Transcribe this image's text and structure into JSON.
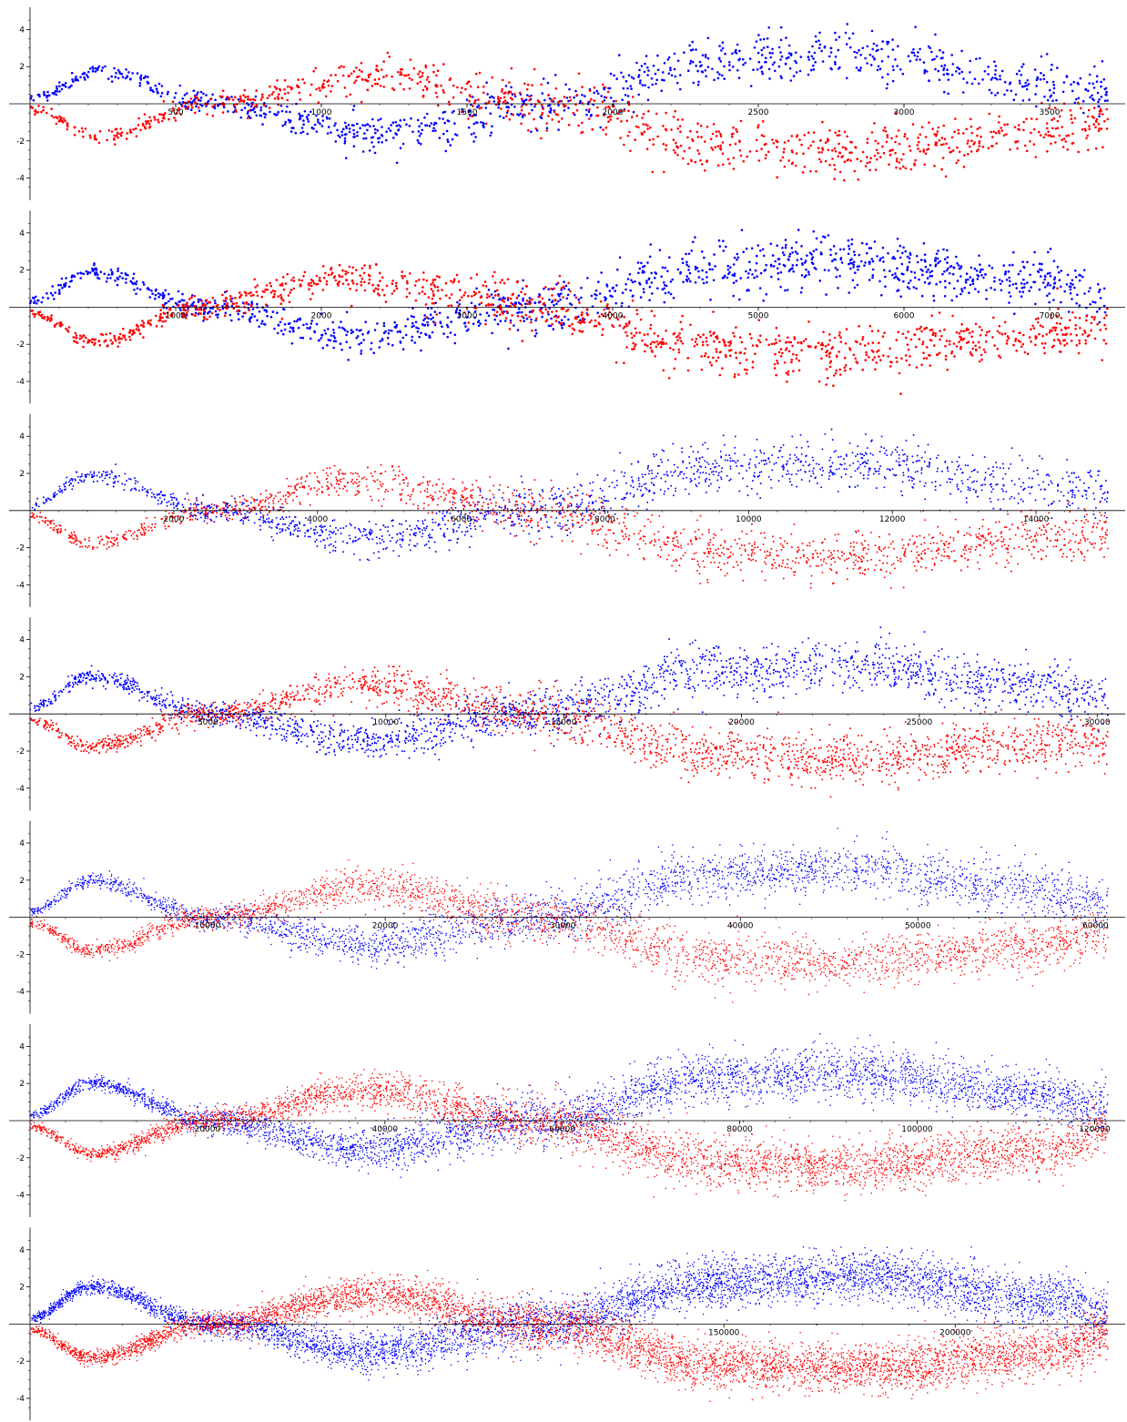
{
  "figure": {
    "panel_count": 7
  },
  "colors": {
    "series_a": "#0000ff",
    "series_b": "#ff0000",
    "axis": "#000000"
  },
  "chart_data": [
    {
      "type": "scatter",
      "title": "",
      "xlabel": "",
      "ylabel": "",
      "xlim": [
        0,
        3700
      ],
      "ylim": [
        -5,
        5
      ],
      "xticks": [
        500,
        1000,
        1500,
        2000,
        2500,
        3000,
        3500
      ],
      "xtick_labels": [
        "500",
        "1000",
        "1500",
        "2000",
        "2500",
        "3000",
        "3500"
      ],
      "yticks": [
        -4,
        -2,
        2,
        4
      ],
      "ytick_labels": [
        "-4",
        "-2",
        "2",
        "4"
      ],
      "grid": false,
      "series": [
        {
          "color": "#0000ff",
          "point_count": 1000,
          "anchors_x": [
            0,
            250,
            600,
            1200,
            1800,
            2350,
            2800,
            3500,
            3700
          ],
          "anchors_y": [
            0.3,
            1.8,
            0,
            -1.5,
            0,
            2.2,
            2.6,
            1.2,
            0.8
          ]
        },
        {
          "color": "#ff0000",
          "point_count": 1000,
          "anchors_x": [
            0,
            250,
            600,
            1200,
            1800,
            2350,
            2800,
            3500,
            3700
          ],
          "anchors_y": [
            -0.3,
            -1.8,
            0,
            1.5,
            0,
            -2.2,
            -2.6,
            -1.5,
            -0.8
          ]
        }
      ]
    },
    {
      "type": "scatter",
      "title": "",
      "xlabel": "",
      "ylabel": "",
      "xlim": [
        0,
        7400
      ],
      "ylim": [
        -5,
        5
      ],
      "xticks": [
        1000,
        2000,
        3000,
        4000,
        5000,
        6000,
        7000
      ],
      "xtick_labels": [
        "1000",
        "2000",
        "3000",
        "4000",
        "5000",
        "6000",
        "7000"
      ],
      "yticks": [
        -4,
        -2,
        2,
        4
      ],
      "ytick_labels": [
        "-4",
        "-2",
        "2",
        "4"
      ],
      "grid": false,
      "series": [
        {
          "color": "#0000ff",
          "point_count": 1200,
          "anchors_x": [
            0,
            450,
            1150,
            2200,
            3500,
            4700,
            5500,
            7000,
            7400
          ],
          "anchors_y": [
            0.3,
            1.9,
            0,
            -1.5,
            0,
            2.2,
            2.5,
            1.3,
            0.6
          ]
        },
        {
          "color": "#ff0000",
          "point_count": 1200,
          "anchors_x": [
            0,
            450,
            1150,
            2200,
            3500,
            4700,
            5500,
            7000,
            7400
          ],
          "anchors_y": [
            -0.3,
            -1.9,
            0,
            1.6,
            0,
            -2.2,
            -2.5,
            -1.5,
            -1.2
          ]
        }
      ]
    },
    {
      "type": "scatter",
      "title": "",
      "xlabel": "",
      "ylabel": "",
      "xlim": [
        0,
        15000
      ],
      "ylim": [
        -5,
        5
      ],
      "xticks": [
        2000,
        4000,
        6000,
        8000,
        10000,
        12000,
        14000
      ],
      "xtick_labels": [
        "2000",
        "4000",
        "6000",
        "8000",
        "10000",
        "12000",
        "14000"
      ],
      "yticks": [
        -4,
        -2,
        2,
        4
      ],
      "ytick_labels": [
        "-4",
        "-2",
        "2",
        "4"
      ],
      "grid": false,
      "series": [
        {
          "color": "#0000ff",
          "point_count": 1600,
          "anchors_x": [
            0,
            850,
            2500,
            4500,
            7000,
            9500,
            11500,
            14000,
            15000
          ],
          "anchors_y": [
            0.3,
            1.9,
            0,
            -1.5,
            0,
            2.3,
            2.6,
            1.4,
            0.8
          ]
        },
        {
          "color": "#ff0000",
          "point_count": 1600,
          "anchors_x": [
            0,
            850,
            2500,
            4500,
            7000,
            9500,
            11500,
            14000,
            15000
          ],
          "anchors_y": [
            -0.3,
            -1.8,
            0,
            1.6,
            0,
            -2.2,
            -2.5,
            -1.6,
            -1.3
          ]
        }
      ]
    },
    {
      "type": "scatter",
      "title": "",
      "xlabel": "",
      "ylabel": "",
      "xlim": [
        0,
        30300
      ],
      "ylim": [
        -5,
        5
      ],
      "xticks": [
        5000,
        10000,
        15000,
        20000,
        25000,
        30000
      ],
      "xtick_labels": [
        "5000",
        "10000",
        "15000",
        "20000",
        "25000",
        "30000"
      ],
      "yticks": [
        -4,
        -2,
        2,
        4
      ],
      "ytick_labels": [
        "-4",
        "-2",
        "2",
        "4"
      ],
      "grid": false,
      "series": [
        {
          "color": "#0000ff",
          "point_count": 2200,
          "anchors_x": [
            0,
            1700,
            5000,
            9500,
            14000,
            19500,
            23000,
            28500,
            30300
          ],
          "anchors_y": [
            0.3,
            2.0,
            0,
            -1.5,
            0,
            2.3,
            2.6,
            1.5,
            0.8
          ]
        },
        {
          "color": "#ff0000",
          "point_count": 2200,
          "anchors_x": [
            0,
            1700,
            5000,
            9500,
            14000,
            19500,
            23000,
            28500,
            30300
          ],
          "anchors_y": [
            -0.3,
            -1.8,
            0,
            1.6,
            0,
            -2.2,
            -2.5,
            -1.6,
            -1.2
          ]
        }
      ]
    },
    {
      "type": "scatter",
      "title": "",
      "xlabel": "",
      "ylabel": "",
      "xlim": [
        0,
        60700
      ],
      "ylim": [
        -5,
        5
      ],
      "xticks": [
        10000,
        20000,
        30000,
        40000,
        50000,
        60000
      ],
      "xtick_labels": [
        "10000",
        "20000",
        "30000",
        "40000",
        "50000",
        "60000"
      ],
      "yticks": [
        -4,
        -2,
        2,
        4
      ],
      "ytick_labels": [
        "-4",
        "-2",
        "2",
        "4"
      ],
      "grid": false,
      "series": [
        {
          "color": "#0000ff",
          "point_count": 3000,
          "anchors_x": [
            0,
            3500,
            10000,
            19000,
            28500,
            38500,
            46000,
            57000,
            60700
          ],
          "anchors_y": [
            0.3,
            2.0,
            0,
            -1.5,
            0,
            2.3,
            2.6,
            1.5,
            0.6
          ]
        },
        {
          "color": "#ff0000",
          "point_count": 3000,
          "anchors_x": [
            0,
            3500,
            10000,
            19000,
            28500,
            38500,
            46000,
            57000,
            60700
          ],
          "anchors_y": [
            -0.3,
            -1.8,
            0,
            1.6,
            0,
            -2.2,
            -2.4,
            -1.6,
            -0.7
          ]
        }
      ]
    },
    {
      "type": "scatter",
      "title": "",
      "xlabel": "",
      "ylabel": "",
      "xlim": [
        0,
        121500
      ],
      "ylim": [
        -5,
        5
      ],
      "xticks": [
        20000,
        40000,
        60000,
        80000,
        100000,
        120000
      ],
      "xtick_labels": [
        "20000",
        "40000",
        "60000",
        "80000",
        "100000",
        "120000"
      ],
      "yticks": [
        -4,
        -2,
        2,
        4
      ],
      "ytick_labels": [
        "-4",
        "-2",
        "2",
        "4"
      ],
      "grid": false,
      "series": [
        {
          "color": "#0000ff",
          "point_count": 4200,
          "anchors_x": [
            0,
            7000,
            20000,
            38000,
            57000,
            77000,
            92000,
            114000,
            121500
          ],
          "anchors_y": [
            0.3,
            2.0,
            0,
            -1.5,
            0,
            2.3,
            2.6,
            1.4,
            0.6
          ]
        },
        {
          "color": "#ff0000",
          "point_count": 4200,
          "anchors_x": [
            0,
            7000,
            20000,
            38000,
            57000,
            77000,
            92000,
            114000,
            121500
          ],
          "anchors_y": [
            -0.3,
            -1.8,
            0,
            1.6,
            0,
            -2.2,
            -2.4,
            -1.6,
            -0.6
          ]
        }
      ]
    },
    {
      "type": "scatter",
      "title": "",
      "xlabel": "",
      "ylabel": "",
      "xlim": [
        0,
        233000
      ],
      "ylim": [
        -5,
        5
      ],
      "xticks": [
        150000,
        200000
      ],
      "xtick_labels": [
        "150000",
        "200000"
      ],
      "yticks": [
        -4,
        -2,
        2,
        4
      ],
      "ytick_labels": [
        "-4",
        "-2",
        "2",
        "4"
      ],
      "grid": false,
      "series": [
        {
          "color": "#0000ff",
          "point_count": 5500,
          "anchors_x": [
            0,
            13000,
            39000,
            74000,
            110000,
            150000,
            180000,
            222000,
            233000
          ],
          "anchors_y": [
            0.3,
            2.0,
            0,
            -1.5,
            0,
            2.3,
            2.6,
            1.3,
            0.6
          ]
        },
        {
          "color": "#ff0000",
          "point_count": 5500,
          "anchors_x": [
            0,
            13000,
            39000,
            74000,
            110000,
            150000,
            180000,
            222000,
            233000
          ],
          "anchors_y": [
            -0.3,
            -1.8,
            0,
            1.6,
            0,
            -2.2,
            -2.4,
            -1.5,
            -0.5
          ]
        }
      ]
    }
  ]
}
